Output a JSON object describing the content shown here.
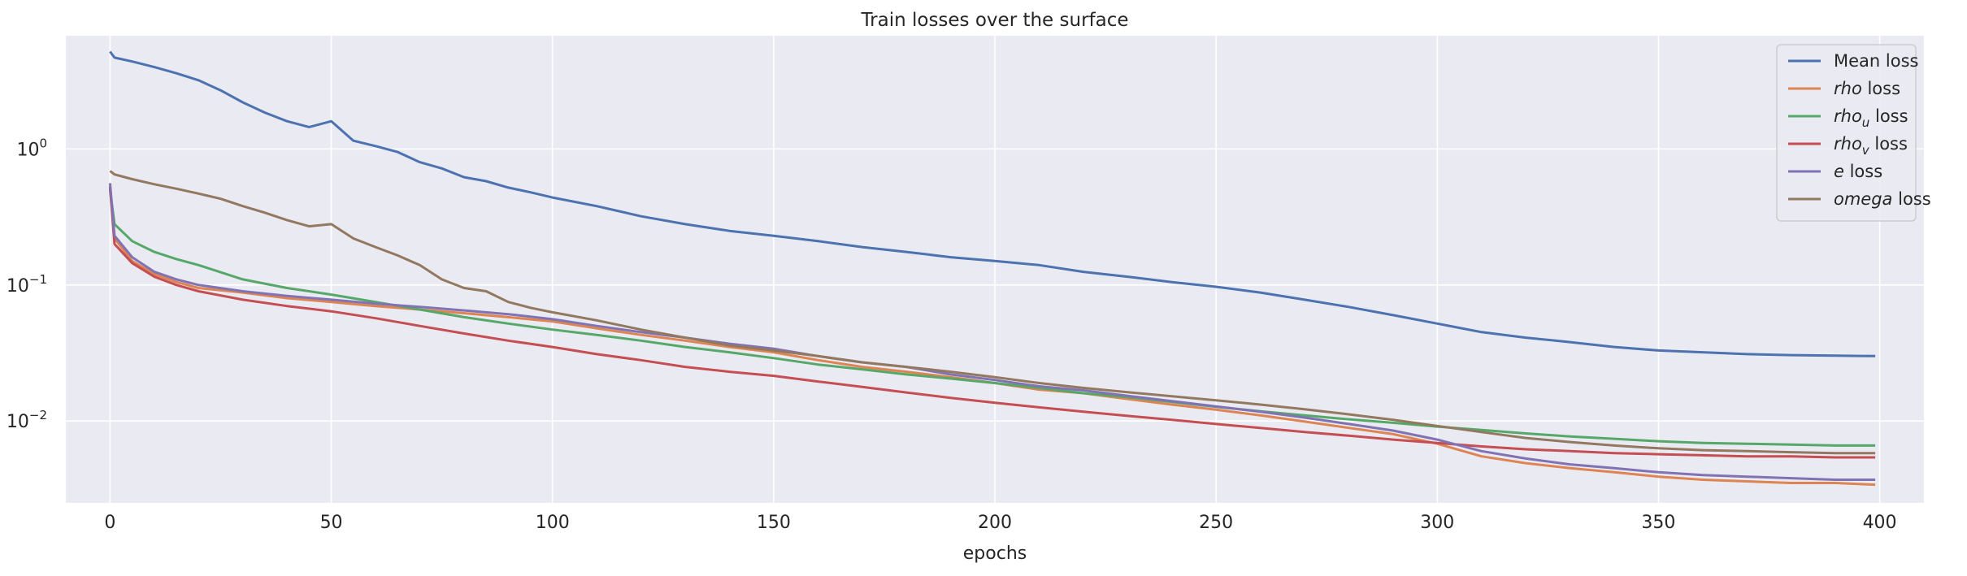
{
  "chart_data": {
    "type": "line",
    "title": "Train losses over the surface",
    "xlabel": "epochs",
    "ylabel": "",
    "xlim": [
      -10,
      410
    ],
    "ylim": [
      0.0025,
      6.8
    ],
    "yscale": "log",
    "xticks": [
      0,
      50,
      100,
      150,
      200,
      250,
      300,
      350,
      400
    ],
    "xtick_labels": [
      "0",
      "50",
      "100",
      "150",
      "200",
      "250",
      "300",
      "350",
      "400"
    ],
    "yticks": [
      0.01,
      0.1,
      1
    ],
    "ytick_labels": [
      {
        "base": "10",
        "exp": "−2"
      },
      {
        "base": "10",
        "exp": "−1"
      },
      {
        "base": "10",
        "exp": "0"
      }
    ],
    "grid": true,
    "background": "#eaeaf2",
    "legend_position": "top-right",
    "series": [
      {
        "name": "Mean loss",
        "name_italic": "",
        "name_sub": "",
        "name_suffix": "",
        "color": "#4c72b0",
        "x": [
          0,
          1,
          5,
          10,
          15,
          20,
          25,
          30,
          35,
          40,
          45,
          50,
          55,
          60,
          65,
          70,
          75,
          80,
          85,
          90,
          95,
          100,
          110,
          120,
          130,
          140,
          150,
          160,
          170,
          180,
          190,
          200,
          210,
          220,
          230,
          240,
          250,
          260,
          270,
          280,
          290,
          300,
          310,
          320,
          330,
          340,
          350,
          360,
          370,
          380,
          390,
          399
        ],
        "y": [
          5.2,
          4.7,
          4.4,
          4.0,
          3.6,
          3.2,
          2.7,
          2.2,
          1.85,
          1.6,
          1.45,
          1.6,
          1.15,
          1.05,
          0.95,
          0.8,
          0.72,
          0.62,
          0.58,
          0.52,
          0.48,
          0.44,
          0.38,
          0.32,
          0.28,
          0.25,
          0.23,
          0.21,
          0.19,
          0.175,
          0.16,
          0.15,
          0.14,
          0.125,
          0.115,
          0.105,
          0.097,
          0.088,
          0.078,
          0.069,
          0.06,
          0.052,
          0.045,
          0.041,
          0.038,
          0.035,
          0.033,
          0.032,
          0.031,
          0.0305,
          0.0302,
          0.03
        ]
      },
      {
        "name": "",
        "name_italic": "rho",
        "name_sub": "",
        "name_suffix": " loss",
        "color": "#dd8452",
        "x": [
          0,
          1,
          5,
          10,
          15,
          20,
          30,
          40,
          50,
          60,
          70,
          80,
          90,
          100,
          110,
          120,
          130,
          140,
          150,
          160,
          170,
          180,
          190,
          200,
          210,
          220,
          230,
          240,
          250,
          260,
          270,
          280,
          290,
          300,
          310,
          320,
          330,
          340,
          350,
          360,
          370,
          380,
          390,
          399
        ],
        "y": [
          0.53,
          0.22,
          0.15,
          0.12,
          0.105,
          0.095,
          0.088,
          0.08,
          0.075,
          0.07,
          0.066,
          0.062,
          0.058,
          0.054,
          0.048,
          0.043,
          0.039,
          0.035,
          0.032,
          0.028,
          0.025,
          0.023,
          0.021,
          0.019,
          0.017,
          0.016,
          0.0145,
          0.0132,
          0.0121,
          0.011,
          0.0099,
          0.0089,
          0.008,
          0.0068,
          0.0055,
          0.0049,
          0.0045,
          0.0042,
          0.0039,
          0.0037,
          0.0036,
          0.0035,
          0.0035,
          0.0034
        ]
      },
      {
        "name": "",
        "name_italic": "rho",
        "name_sub": "u",
        "name_suffix": " loss",
        "color": "#55a868",
        "x": [
          0,
          1,
          5,
          10,
          15,
          20,
          30,
          40,
          50,
          60,
          70,
          80,
          90,
          100,
          110,
          120,
          130,
          140,
          150,
          160,
          170,
          180,
          190,
          200,
          210,
          220,
          230,
          240,
          250,
          260,
          270,
          280,
          290,
          300,
          310,
          320,
          330,
          340,
          350,
          360,
          370,
          380,
          390,
          399
        ],
        "y": [
          0.5,
          0.28,
          0.21,
          0.175,
          0.155,
          0.14,
          0.11,
          0.095,
          0.085,
          0.075,
          0.066,
          0.058,
          0.052,
          0.047,
          0.043,
          0.039,
          0.035,
          0.032,
          0.029,
          0.026,
          0.024,
          0.022,
          0.0205,
          0.019,
          0.0175,
          0.016,
          0.015,
          0.0138,
          0.0127,
          0.0118,
          0.011,
          0.0103,
          0.0097,
          0.0091,
          0.0086,
          0.0081,
          0.0077,
          0.0074,
          0.0071,
          0.0069,
          0.0068,
          0.0067,
          0.0066,
          0.0066
        ]
      },
      {
        "name": "",
        "name_italic": "rho",
        "name_sub": "v",
        "name_suffix": " loss",
        "color": "#c44e52",
        "x": [
          0,
          1,
          5,
          10,
          15,
          20,
          30,
          40,
          50,
          60,
          70,
          80,
          90,
          100,
          110,
          120,
          130,
          140,
          150,
          160,
          170,
          180,
          190,
          200,
          210,
          220,
          230,
          240,
          250,
          260,
          270,
          280,
          290,
          300,
          310,
          320,
          330,
          340,
          350,
          360,
          370,
          380,
          390,
          399
        ],
        "y": [
          0.52,
          0.2,
          0.145,
          0.115,
          0.1,
          0.09,
          0.078,
          0.07,
          0.064,
          0.057,
          0.05,
          0.044,
          0.039,
          0.035,
          0.031,
          0.028,
          0.025,
          0.023,
          0.0215,
          0.0195,
          0.0178,
          0.0162,
          0.0148,
          0.0136,
          0.0126,
          0.0117,
          0.0109,
          0.0102,
          0.0095,
          0.0089,
          0.0083,
          0.0078,
          0.0073,
          0.0069,
          0.0065,
          0.0062,
          0.006,
          0.0058,
          0.0057,
          0.0056,
          0.0055,
          0.0055,
          0.0054,
          0.0054
        ]
      },
      {
        "name": "",
        "name_italic": "e",
        "name_sub": "",
        "name_suffix": " loss",
        "color": "#8172b3",
        "x": [
          0,
          1,
          5,
          10,
          15,
          20,
          30,
          40,
          50,
          60,
          70,
          80,
          90,
          100,
          110,
          120,
          130,
          140,
          150,
          160,
          170,
          180,
          190,
          200,
          210,
          220,
          230,
          240,
          250,
          260,
          270,
          280,
          290,
          300,
          310,
          320,
          330,
          340,
          350,
          360,
          370,
          380,
          390,
          399
        ],
        "y": [
          0.56,
          0.23,
          0.16,
          0.125,
          0.11,
          0.1,
          0.09,
          0.083,
          0.078,
          0.073,
          0.069,
          0.065,
          0.061,
          0.056,
          0.05,
          0.045,
          0.041,
          0.037,
          0.034,
          0.03,
          0.027,
          0.025,
          0.022,
          0.02,
          0.018,
          0.0168,
          0.0153,
          0.014,
          0.0128,
          0.0117,
          0.0106,
          0.0095,
          0.0085,
          0.0073,
          0.006,
          0.0053,
          0.0048,
          0.0045,
          0.0042,
          0.004,
          0.0039,
          0.0038,
          0.0037,
          0.0037
        ]
      },
      {
        "name": "",
        "name_italic": "omega",
        "name_sub": "",
        "name_suffix": " loss",
        "color": "#937860",
        "x": [
          0,
          1,
          5,
          10,
          15,
          20,
          25,
          30,
          35,
          40,
          45,
          50,
          55,
          60,
          65,
          70,
          75,
          80,
          85,
          90,
          95,
          100,
          110,
          120,
          130,
          140,
          150,
          160,
          170,
          180,
          190,
          200,
          210,
          220,
          230,
          240,
          250,
          260,
          270,
          280,
          290,
          300,
          310,
          320,
          330,
          340,
          350,
          360,
          370,
          380,
          390,
          399
        ],
        "y": [
          0.69,
          0.65,
          0.6,
          0.55,
          0.51,
          0.47,
          0.43,
          0.38,
          0.34,
          0.3,
          0.27,
          0.28,
          0.22,
          0.19,
          0.165,
          0.14,
          0.11,
          0.095,
          0.09,
          0.075,
          0.068,
          0.063,
          0.055,
          0.047,
          0.041,
          0.036,
          0.033,
          0.03,
          0.027,
          0.025,
          0.023,
          0.021,
          0.019,
          0.0175,
          0.0163,
          0.0152,
          0.0142,
          0.0132,
          0.0122,
          0.0112,
          0.0102,
          0.0092,
          0.0083,
          0.0075,
          0.007,
          0.0066,
          0.0063,
          0.0061,
          0.006,
          0.0059,
          0.0058,
          0.0058
        ]
      }
    ]
  }
}
